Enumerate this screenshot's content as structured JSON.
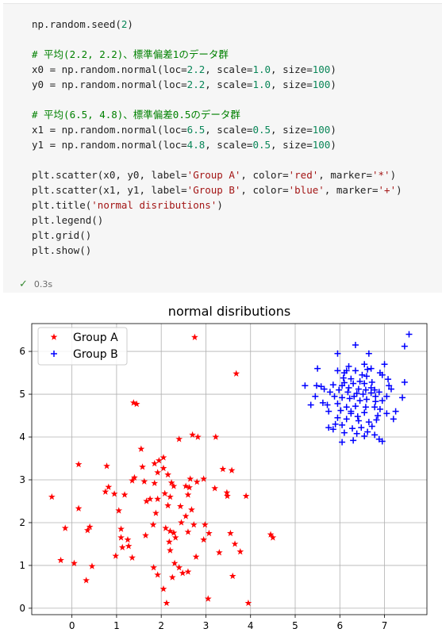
{
  "code_cell": {
    "lines": [
      [
        [
          "np.random.seed",
          "plain"
        ],
        [
          "(",
          "plain"
        ],
        [
          "2",
          "num"
        ],
        [
          ")",
          "plain"
        ]
      ],
      [],
      [
        [
          "# 平均(2.2, 2.2)、標準偏差1のデータ群",
          "cmt"
        ]
      ],
      [
        [
          "x0 = np.random.normal(loc=",
          "plain"
        ],
        [
          "2.2",
          "num"
        ],
        [
          ", scale=",
          "plain"
        ],
        [
          "1.0",
          "num"
        ],
        [
          ", size=",
          "plain"
        ],
        [
          "100",
          "num"
        ],
        [
          ")",
          "plain"
        ]
      ],
      [
        [
          "y0 = np.random.normal(loc=",
          "plain"
        ],
        [
          "2.2",
          "num"
        ],
        [
          ", scale=",
          "plain"
        ],
        [
          "1.0",
          "num"
        ],
        [
          ", size=",
          "plain"
        ],
        [
          "100",
          "num"
        ],
        [
          ")",
          "plain"
        ]
      ],
      [],
      [
        [
          "# 平均(6.5, 4.8)、標準偏差0.5のデータ群",
          "cmt"
        ]
      ],
      [
        [
          "x1 = np.random.normal(loc=",
          "plain"
        ],
        [
          "6.5",
          "num"
        ],
        [
          ", scale=",
          "plain"
        ],
        [
          "0.5",
          "num"
        ],
        [
          ", size=",
          "plain"
        ],
        [
          "100",
          "num"
        ],
        [
          ")",
          "plain"
        ]
      ],
      [
        [
          "y1 = np.random.normal(loc=",
          "plain"
        ],
        [
          "4.8",
          "num"
        ],
        [
          ", scale=",
          "plain"
        ],
        [
          "0.5",
          "num"
        ],
        [
          ", size=",
          "plain"
        ],
        [
          "100",
          "num"
        ],
        [
          ")",
          "plain"
        ]
      ],
      [],
      [
        [
          "plt.scatter(x0, y0, label=",
          "plain"
        ],
        [
          "'Group A'",
          "str"
        ],
        [
          ", color=",
          "plain"
        ],
        [
          "'red'",
          "str"
        ],
        [
          ", marker=",
          "plain"
        ],
        [
          "'*'",
          "str"
        ],
        [
          ")",
          "plain"
        ]
      ],
      [
        [
          "plt.scatter(x1, y1, label=",
          "plain"
        ],
        [
          "'Group B'",
          "str"
        ],
        [
          ", color=",
          "plain"
        ],
        [
          "'blue'",
          "str"
        ],
        [
          ", marker=",
          "plain"
        ],
        [
          "'+'",
          "str"
        ],
        [
          ")",
          "plain"
        ]
      ],
      [
        [
          "plt.title(",
          "plain"
        ],
        [
          "'normal disributions'",
          "str"
        ],
        [
          ")",
          "plain"
        ]
      ],
      [
        [
          "plt.legend()",
          "plain"
        ]
      ],
      [
        [
          "plt.grid()",
          "plain"
        ]
      ],
      [
        [
          "plt.show()",
          "plain"
        ]
      ]
    ]
  },
  "status": {
    "check_icon": "check-icon",
    "time": "0.3s"
  },
  "colors": {
    "group_a": "#ff0000",
    "group_b": "#0000ff",
    "grid": "#b0b0b0",
    "num": "#098658",
    "str": "#a31515",
    "cmt": "#008000"
  },
  "chart_data": {
    "type": "scatter",
    "title": "normal disributions",
    "xlabel": "",
    "ylabel": "",
    "xlim": [
      -0.9,
      7.95
    ],
    "ylim": [
      -0.15,
      6.65
    ],
    "xticks": [
      0,
      1,
      2,
      3,
      4,
      5,
      6,
      7
    ],
    "yticks": [
      0,
      1,
      2,
      3,
      4,
      5,
      6
    ],
    "grid": true,
    "legend_position": "top-left",
    "series": [
      {
        "name": "Group A",
        "color": "red",
        "marker": "*",
        "points": [
          [
            2.75,
            6.33
          ],
          [
            3.68,
            5.48
          ],
          [
            1.38,
            4.8
          ],
          [
            1.45,
            4.77
          ],
          [
            2.7,
            4.05
          ],
          [
            2.82,
            4.0
          ],
          [
            3.22,
            4.0
          ],
          [
            2.4,
            3.95
          ],
          [
            1.55,
            3.72
          ],
          [
            2.05,
            3.52
          ],
          [
            1.95,
            3.45
          ],
          [
            1.85,
            3.38
          ],
          [
            0.15,
            3.36
          ],
          [
            0.78,
            3.32
          ],
          [
            1.58,
            3.3
          ],
          [
            2.05,
            3.27
          ],
          [
            3.38,
            3.25
          ],
          [
            3.58,
            3.22
          ],
          [
            1.92,
            3.17
          ],
          [
            2.15,
            3.12
          ],
          [
            1.4,
            3.05
          ],
          [
            1.35,
            2.98
          ],
          [
            1.62,
            2.96
          ],
          [
            2.23,
            2.93
          ],
          [
            1.85,
            2.92
          ],
          [
            2.8,
            2.95
          ],
          [
            2.95,
            3.02
          ],
          [
            2.28,
            2.85
          ],
          [
            2.55,
            2.85
          ],
          [
            2.63,
            2.82
          ],
          [
            3.2,
            2.8
          ],
          [
            0.82,
            2.83
          ],
          [
            0.75,
            2.72
          ],
          [
            0.95,
            2.67
          ],
          [
            1.18,
            2.65
          ],
          [
            1.75,
            2.55
          ],
          [
            1.67,
            2.5
          ],
          [
            2.08,
            2.68
          ],
          [
            2.2,
            2.6
          ],
          [
            2.6,
            2.65
          ],
          [
            3.47,
            2.7
          ],
          [
            3.48,
            2.62
          ],
          [
            3.9,
            2.62
          ],
          [
            -0.45,
            2.6
          ],
          [
            1.92,
            2.55
          ],
          [
            2.15,
            2.4
          ],
          [
            2.43,
            2.38
          ],
          [
            2.68,
            2.3
          ],
          [
            0.15,
            2.33
          ],
          [
            1.05,
            2.28
          ],
          [
            1.88,
            2.22
          ],
          [
            2.55,
            2.15
          ],
          [
            1.82,
            1.95
          ],
          [
            2.1,
            1.87
          ],
          [
            2.45,
            2.0
          ],
          [
            2.73,
            1.95
          ],
          [
            2.98,
            1.95
          ],
          [
            -0.15,
            1.87
          ],
          [
            0.35,
            1.82
          ],
          [
            0.4,
            1.9
          ],
          [
            1.1,
            1.85
          ],
          [
            2.2,
            1.8
          ],
          [
            2.28,
            1.76
          ],
          [
            2.6,
            1.78
          ],
          [
            3.07,
            1.75
          ],
          [
            3.55,
            1.75
          ],
          [
            4.45,
            1.72
          ],
          [
            1.1,
            1.65
          ],
          [
            1.25,
            1.6
          ],
          [
            2.18,
            1.55
          ],
          [
            1.27,
            1.45
          ],
          [
            1.13,
            1.42
          ],
          [
            2.2,
            1.35
          ],
          [
            2.95,
            1.6
          ],
          [
            3.65,
            1.5
          ],
          [
            3.3,
            1.3
          ],
          [
            3.77,
            1.32
          ],
          [
            0.98,
            1.22
          ],
          [
            1.35,
            1.18
          ],
          [
            -0.25,
            1.12
          ],
          [
            0.05,
            1.05
          ],
          [
            0.45,
            0.98
          ],
          [
            1.83,
            0.95
          ],
          [
            2.3,
            1.05
          ],
          [
            2.4,
            0.95
          ],
          [
            2.48,
            0.82
          ],
          [
            2.6,
            0.85
          ],
          [
            2.78,
            1.2
          ],
          [
            4.5,
            1.65
          ],
          [
            3.6,
            0.75
          ],
          [
            2.25,
            0.72
          ],
          [
            1.92,
            0.78
          ],
          [
            0.32,
            0.65
          ],
          [
            2.05,
            0.45
          ],
          [
            2.12,
            0.12
          ],
          [
            3.05,
            0.22
          ],
          [
            3.95,
            0.12
          ],
          [
            2.32,
            1.65
          ],
          [
            2.65,
            3.02
          ],
          [
            1.65,
            1.7
          ]
        ]
      },
      {
        "name": "Group B",
        "color": "blue",
        "marker": "+",
        "points": [
          [
            7.55,
            6.4
          ],
          [
            7.45,
            6.12
          ],
          [
            6.35,
            6.15
          ],
          [
            5.95,
            5.95
          ],
          [
            6.65,
            5.95
          ],
          [
            6.2,
            5.65
          ],
          [
            6.55,
            5.7
          ],
          [
            6.7,
            5.6
          ],
          [
            7.0,
            5.7
          ],
          [
            5.5,
            5.6
          ],
          [
            5.95,
            5.55
          ],
          [
            6.1,
            5.5
          ],
          [
            6.35,
            5.55
          ],
          [
            6.5,
            5.45
          ],
          [
            6.62,
            5.58
          ],
          [
            6.95,
            5.45
          ],
          [
            6.6,
            5.42
          ],
          [
            6.08,
            5.38
          ],
          [
            6.25,
            5.36
          ],
          [
            6.45,
            5.3
          ],
          [
            7.08,
            5.35
          ],
          [
            6.1,
            5.27
          ],
          [
            6.3,
            5.25
          ],
          [
            6.55,
            5.25
          ],
          [
            6.72,
            5.28
          ],
          [
            6.05,
            5.2
          ],
          [
            5.85,
            5.22
          ],
          [
            6.2,
            5.15
          ],
          [
            6.42,
            5.12
          ],
          [
            6.58,
            5.1
          ],
          [
            6.78,
            5.1
          ],
          [
            7.15,
            5.12
          ],
          [
            7.45,
            5.28
          ],
          [
            5.22,
            5.2
          ],
          [
            5.48,
            5.2
          ],
          [
            5.58,
            5.18
          ],
          [
            5.65,
            5.12
          ],
          [
            5.98,
            5.1
          ],
          [
            6.18,
            5.05
          ],
          [
            6.38,
            5.02
          ],
          [
            6.52,
            5.0
          ],
          [
            6.7,
            5.03
          ],
          [
            6.88,
            5.05
          ],
          [
            7.05,
            4.95
          ],
          [
            7.4,
            4.92
          ],
          [
            5.78,
            5.05
          ],
          [
            5.88,
            4.95
          ],
          [
            6.05,
            4.92
          ],
          [
            6.22,
            4.9
          ],
          [
            6.45,
            4.85
          ],
          [
            6.6,
            4.88
          ],
          [
            6.8,
            4.83
          ],
          [
            6.95,
            4.85
          ],
          [
            5.45,
            4.95
          ],
          [
            5.62,
            4.8
          ],
          [
            5.72,
            4.75
          ],
          [
            5.95,
            4.78
          ],
          [
            6.15,
            4.7
          ],
          [
            6.35,
            4.72
          ],
          [
            6.58,
            4.7
          ],
          [
            6.78,
            4.7
          ],
          [
            6.9,
            4.65
          ],
          [
            5.75,
            4.6
          ],
          [
            6.02,
            4.62
          ],
          [
            6.25,
            4.55
          ],
          [
            6.55,
            4.57
          ],
          [
            6.85,
            4.5
          ],
          [
            7.05,
            4.55
          ],
          [
            7.2,
            4.42
          ],
          [
            7.25,
            4.6
          ],
          [
            5.95,
            4.45
          ],
          [
            6.15,
            4.42
          ],
          [
            6.42,
            4.38
          ],
          [
            6.65,
            4.35
          ],
          [
            6.82,
            4.4
          ],
          [
            5.9,
            4.3
          ],
          [
            6.05,
            4.28
          ],
          [
            6.48,
            4.22
          ],
          [
            6.72,
            4.25
          ],
          [
            5.75,
            4.22
          ],
          [
            5.85,
            4.18
          ],
          [
            6.28,
            4.2
          ],
          [
            6.62,
            4.12
          ],
          [
            6.78,
            4.05
          ],
          [
            6.1,
            4.1
          ],
          [
            6.38,
            4.08
          ],
          [
            6.55,
            4.02
          ],
          [
            6.88,
            3.95
          ],
          [
            6.05,
            3.88
          ],
          [
            6.95,
            3.9
          ],
          [
            6.3,
            3.92
          ],
          [
            6.4,
            4.48
          ],
          [
            6.7,
            5.15
          ],
          [
            6.15,
            5.55
          ],
          [
            6.8,
            4.95
          ],
          [
            7.1,
            5.2
          ],
          [
            5.35,
            4.75
          ],
          [
            6.32,
            4.95
          ],
          [
            6.9,
            5.5
          ],
          [
            6.25,
            4.6
          ]
        ]
      }
    ]
  }
}
